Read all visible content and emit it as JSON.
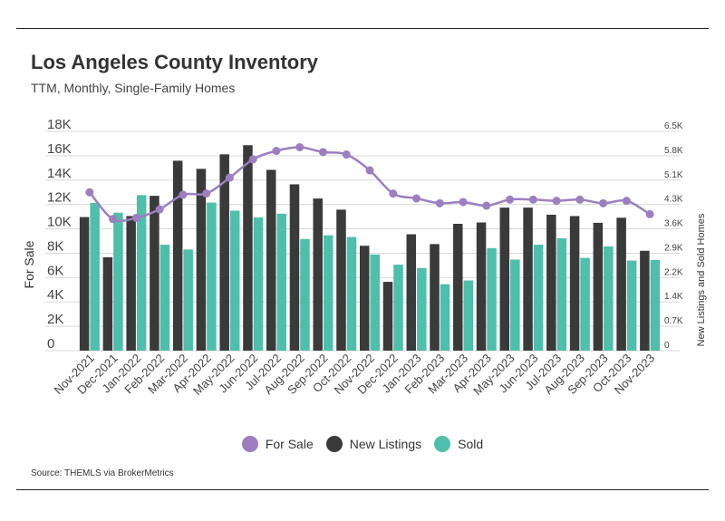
{
  "title": "Los Angeles County Inventory",
  "subtitle": "TTM, Monthly, Single-Family Homes",
  "source": "Source:  THEMLS via BrokerMetrics",
  "colors": {
    "for_sale": "#9c7fc0",
    "new_listings": "#3a3a3a",
    "sold": "#4dbfaa",
    "grid": "#d9d9d9"
  },
  "chart_data": {
    "type": "bar",
    "categories": [
      "Nov-2021",
      "Dec-2021",
      "Jan-2022",
      "Feb-2022",
      "Mar-2022",
      "Apr-2022",
      "May-2022",
      "Jun-2022",
      "Jul-2022",
      "Aug-2022",
      "Sep-2022",
      "Oct-2022",
      "Nov-2022",
      "Dec-2022",
      "Jan-2023",
      "Feb-2023",
      "Mar-2023",
      "Apr-2023",
      "May-2023",
      "Jun-2023",
      "Jul-2023",
      "Aug-2023",
      "Sep-2023",
      "Oct-2023",
      "Nov-2023"
    ],
    "ylabel": "For Sale",
    "y2label": "New Listings and Sold Homes",
    "ylim": [
      0,
      18000
    ],
    "y2lim": [
      0,
      6500
    ],
    "yticks": [
      "0",
      "2K",
      "4K",
      "6K",
      "8K",
      "10K",
      "12K",
      "14K",
      "16K",
      "18K"
    ],
    "y2ticks": [
      "0",
      "0.7K",
      "1.4K",
      "2.2K",
      "2.9K",
      "3.6K",
      "4.3K",
      "5.1K",
      "5.8K",
      "6.5K"
    ],
    "legend_position": "bottom",
    "series": [
      {
        "name": "For Sale",
        "type": "line",
        "axis": "left",
        "values": [
          13000,
          10800,
          10900,
          11600,
          12800,
          12900,
          14200,
          15700,
          16400,
          16700,
          16300,
          16100,
          14800,
          12900,
          12500,
          12100,
          12200,
          11900,
          12400,
          12400,
          12300,
          12400,
          12100,
          12300,
          11200
        ]
      },
      {
        "name": "New Listings",
        "type": "bar",
        "axis": "right",
        "values": [
          3960,
          2770,
          3990,
          4590,
          5630,
          5390,
          5820,
          6090,
          5360,
          4930,
          4510,
          4180,
          3110,
          2040,
          3450,
          3160,
          3760,
          3800,
          4240,
          4240,
          4030,
          3990,
          3790,
          3940,
          2960
        ]
      },
      {
        "name": "Sold",
        "type": "bar",
        "axis": "right",
        "values": [
          4380,
          4090,
          4610,
          3140,
          3000,
          4390,
          4150,
          3950,
          4060,
          3310,
          3420,
          3370,
          2850,
          2550,
          2450,
          1970,
          2080,
          3040,
          2700,
          3140,
          3330,
          2750,
          3090,
          2670,
          2690
        ]
      }
    ]
  }
}
